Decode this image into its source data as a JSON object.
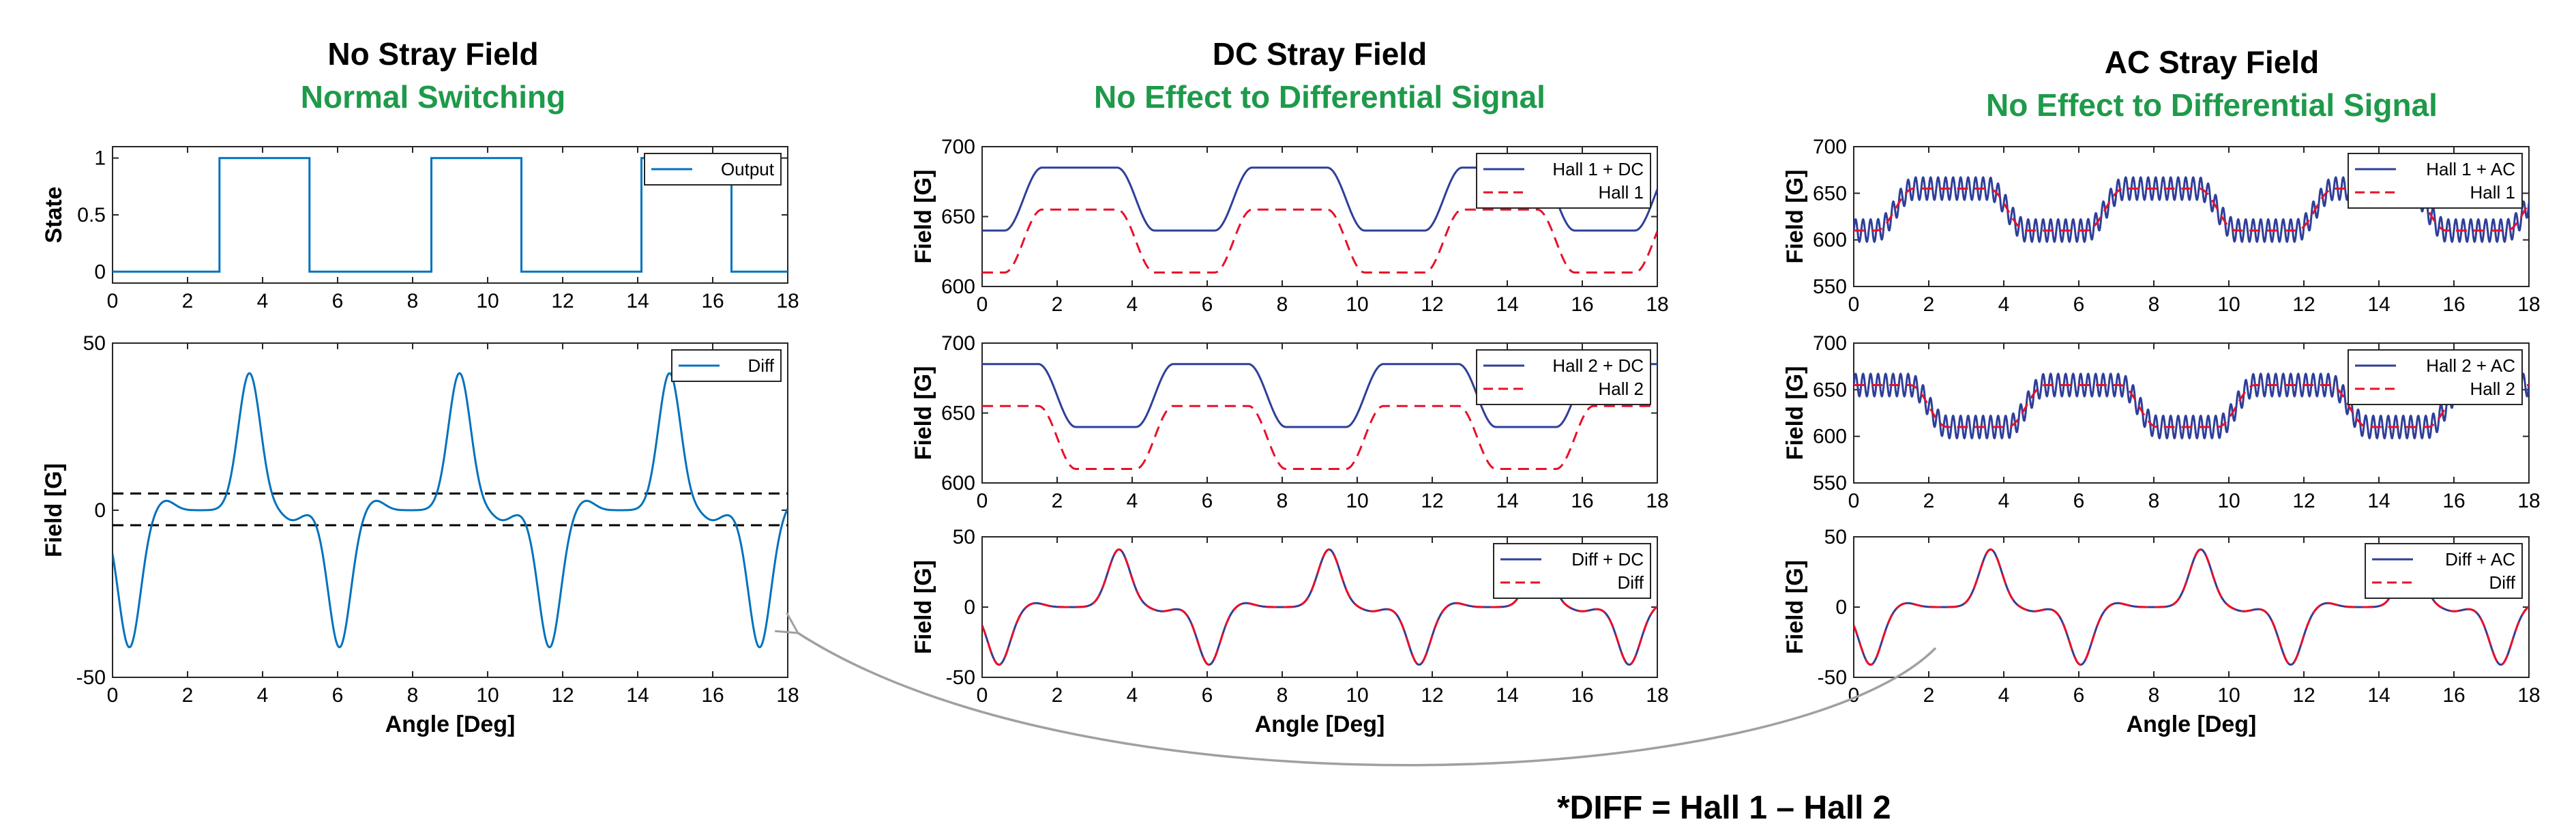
{
  "footnote": "*DIFF = Hall 1 – Hall 2",
  "colors": {
    "title": "#000000",
    "subtitle": "#1e9a4a",
    "blue": "#2e3f99",
    "matlab_blue": "#0072bd",
    "red": "#e8102b",
    "arrow": "#a0a0a0"
  },
  "columns": [
    {
      "title": "No Stray Field",
      "subtitle": "Normal Switching"
    },
    {
      "title": "DC Stray Field",
      "subtitle": "No Effect to Differential Signal"
    },
    {
      "title": "AC Stray Field",
      "subtitle": "No Effect to Differential Signal"
    }
  ],
  "chart_data": [
    {
      "id": "state",
      "type": "line",
      "ylabel": "State",
      "xlabel": "",
      "xlim": [
        0,
        18
      ],
      "ylim": [
        -0.1,
        1.1
      ],
      "xticks": [
        0,
        2,
        4,
        6,
        8,
        10,
        12,
        14,
        16,
        18
      ],
      "yticks": [
        0,
        0.5,
        1
      ],
      "legend_position": "top-right",
      "series": [
        {
          "name": "Output",
          "style": "solid",
          "color": "#0072bd",
          "x": [
            0,
            2.85,
            2.85,
            5.25,
            5.25,
            8.5,
            8.5,
            10.9,
            10.9,
            14.1,
            14.1,
            16.5,
            16.5,
            18
          ],
          "y": [
            0,
            0,
            1,
            1,
            0,
            0,
            1,
            1,
            0,
            0,
            1,
            1,
            0,
            0
          ]
        }
      ]
    },
    {
      "id": "diff",
      "type": "line",
      "ylabel": "Field [G]",
      "xlabel": "Angle [Deg]",
      "xlim": [
        0,
        18
      ],
      "ylim": [
        -50,
        50
      ],
      "xticks": [
        0,
        2,
        4,
        6,
        8,
        10,
        12,
        14,
        16,
        18
      ],
      "yticks": [
        -50,
        0,
        50
      ],
      "legend_position": "top-right",
      "thresholds": [
        5,
        -4.5
      ],
      "series": [
        {
          "name": "Diff",
          "style": "solid",
          "color": "#0072bd",
          "signal": "diff",
          "offset": 0
        }
      ]
    },
    {
      "id": "dc_hall1",
      "type": "line",
      "ylabel": "Field [G]",
      "xlabel": "",
      "xlim": [
        0,
        18
      ],
      "ylim": [
        600,
        700
      ],
      "xticks": [
        0,
        2,
        4,
        6,
        8,
        10,
        12,
        14,
        16,
        18
      ],
      "yticks": [
        600,
        650,
        700
      ],
      "legend_position": "top-right",
      "series": [
        {
          "name": "Hall 1 + DC",
          "style": "solid",
          "color": "#2e3f99",
          "signal": "hall1",
          "offset": 30
        },
        {
          "name": "Hall 1",
          "style": "dashed",
          "color": "#e8102b",
          "signal": "hall1",
          "offset": 0
        }
      ]
    },
    {
      "id": "dc_hall2",
      "type": "line",
      "ylabel": "Field [G]",
      "xlabel": "",
      "xlim": [
        0,
        18
      ],
      "ylim": [
        600,
        700
      ],
      "xticks": [
        0,
        2,
        4,
        6,
        8,
        10,
        12,
        14,
        16,
        18
      ],
      "yticks": [
        600,
        650,
        700
      ],
      "legend_position": "top-right",
      "series": [
        {
          "name": "Hall 2 + DC",
          "style": "solid",
          "color": "#2e3f99",
          "signal": "hall2",
          "offset": 30
        },
        {
          "name": "Hall 2",
          "style": "dashed",
          "color": "#e8102b",
          "signal": "hall2",
          "offset": 0
        }
      ]
    },
    {
      "id": "dc_diff",
      "type": "line",
      "ylabel": "Field [G]",
      "xlabel": "Angle [Deg]",
      "xlim": [
        0,
        18
      ],
      "ylim": [
        -50,
        50
      ],
      "xticks": [
        0,
        2,
        4,
        6,
        8,
        10,
        12,
        14,
        16,
        18
      ],
      "yticks": [
        -50,
        0,
        50
      ],
      "legend_position": "top-right",
      "series": [
        {
          "name": "Diff + DC",
          "style": "solid",
          "color": "#2e3f99",
          "signal": "diff",
          "offset": 0
        },
        {
          "name": "Diff",
          "style": "dashed",
          "color": "#e8102b",
          "signal": "diff",
          "offset": 0
        }
      ]
    },
    {
      "id": "ac_hall1",
      "type": "line",
      "ylabel": "Field [G]",
      "xlabel": "",
      "xlim": [
        0,
        18
      ],
      "ylim": [
        550,
        700
      ],
      "xticks": [
        0,
        2,
        4,
        6,
        8,
        10,
        12,
        14,
        16,
        18
      ],
      "yticks": [
        550,
        600,
        650,
        700
      ],
      "legend_position": "top-right",
      "series": [
        {
          "name": "Hall 1 + AC",
          "style": "solid",
          "color": "#2e3f99",
          "signal": "hall1",
          "offset": 0,
          "ac_amplitude": 12,
          "ac_period": 0.2
        },
        {
          "name": "Hall 1",
          "style": "dashed",
          "color": "#e8102b",
          "signal": "hall1",
          "offset": 0
        }
      ]
    },
    {
      "id": "ac_hall2",
      "type": "line",
      "ylabel": "Field [G]",
      "xlabel": "",
      "xlim": [
        0,
        18
      ],
      "ylim": [
        550,
        700
      ],
      "xticks": [
        0,
        2,
        4,
        6,
        8,
        10,
        12,
        14,
        16,
        18
      ],
      "yticks": [
        550,
        600,
        650,
        700
      ],
      "legend_position": "top-right",
      "series": [
        {
          "name": "Hall 2 + AC",
          "style": "solid",
          "color": "#2e3f99",
          "signal": "hall2",
          "offset": 0,
          "ac_amplitude": 12,
          "ac_period": 0.2
        },
        {
          "name": "Hall 2",
          "style": "dashed",
          "color": "#e8102b",
          "signal": "hall2",
          "offset": 0
        }
      ]
    },
    {
      "id": "ac_diff",
      "type": "line",
      "ylabel": "Field [G]",
      "xlabel": "Angle [Deg]",
      "xlim": [
        0,
        18
      ],
      "ylim": [
        -50,
        50
      ],
      "xticks": [
        0,
        2,
        4,
        6,
        8,
        10,
        12,
        14,
        16,
        18
      ],
      "yticks": [
        -50,
        0,
        50
      ],
      "legend_position": "top-right",
      "series": [
        {
          "name": "Diff + AC",
          "style": "solid",
          "color": "#2e3f99",
          "signal": "diff",
          "offset": 0
        },
        {
          "name": "Diff",
          "style": "dashed",
          "color": "#e8102b",
          "signal": "diff",
          "offset": 0
        }
      ]
    }
  ]
}
